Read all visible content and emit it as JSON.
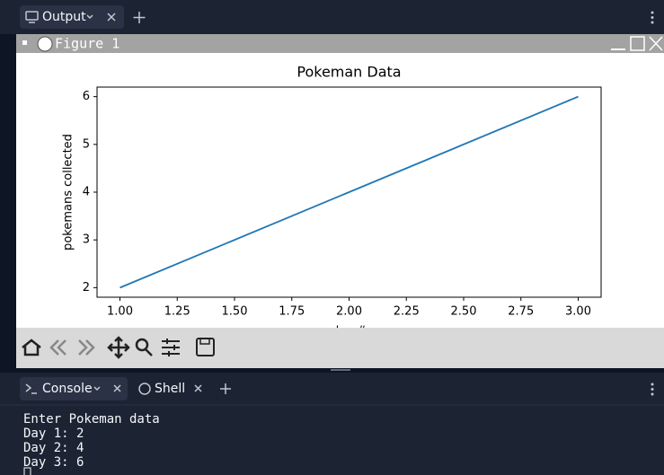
{
  "output_tab": "Output",
  "window_title": "Figure 1",
  "chart_data": {
    "type": "line",
    "title": "Pokeman Data",
    "x_label": "day #",
    "y_label": "pokemans collected",
    "x": [
      1,
      2,
      3
    ],
    "values": [
      2,
      4,
      6
    ],
    "color": "#1f77b4",
    "xlim": [
      0.9,
      3.1
    ],
    "ylim": [
      1.8,
      6.2
    ],
    "xticks": [
      {
        "value": 1,
        "label": "1.00"
      },
      {
        "value": 1.25,
        "label": "1.25"
      },
      {
        "value": 1.5,
        "label": "1.50"
      },
      {
        "value": 1.75,
        "label": "1.75"
      },
      {
        "value": 2,
        "label": "2.00"
      },
      {
        "value": 2.25,
        "label": "2.25"
      },
      {
        "value": 2.5,
        "label": "2.50"
      },
      {
        "value": 2.75,
        "label": "2.75"
      },
      {
        "value": 3,
        "label": "3.00"
      }
    ],
    "yticks": [
      2,
      3,
      4,
      5,
      6
    ],
    "grid": false
  },
  "console_tabs": [
    "Console",
    "Shell"
  ],
  "console_lines": [
    "Enter Pokeman data",
    "Day 1: 2",
    "Day 2: 4",
    "Day 3: 6"
  ]
}
